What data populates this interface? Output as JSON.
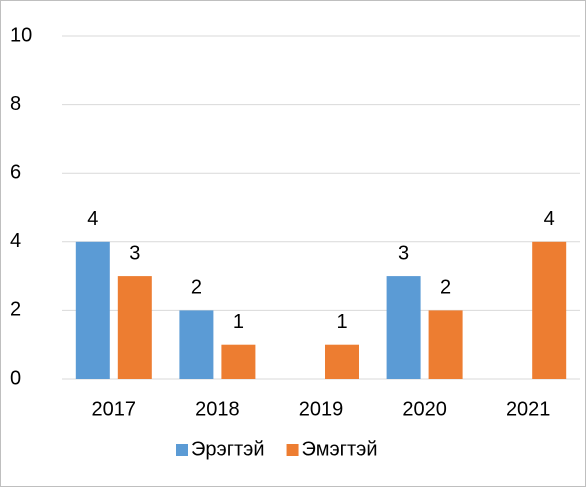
{
  "chart_data": {
    "type": "bar",
    "categories": [
      "2017",
      "2018",
      "2019",
      "2020",
      "2021"
    ],
    "series": [
      {
        "name": "Эрэгтэй",
        "color": "#5b9bd5",
        "values": [
          4,
          2,
          null,
          3,
          null
        ]
      },
      {
        "name": "Эмэгтэй",
        "color": "#ed7d31",
        "values": [
          3,
          1,
          1,
          2,
          4
        ]
      }
    ],
    "ylim": [
      0,
      10
    ],
    "yticks": [
      0,
      2,
      4,
      6,
      8,
      10
    ],
    "grid": true,
    "legend": "bottom"
  }
}
